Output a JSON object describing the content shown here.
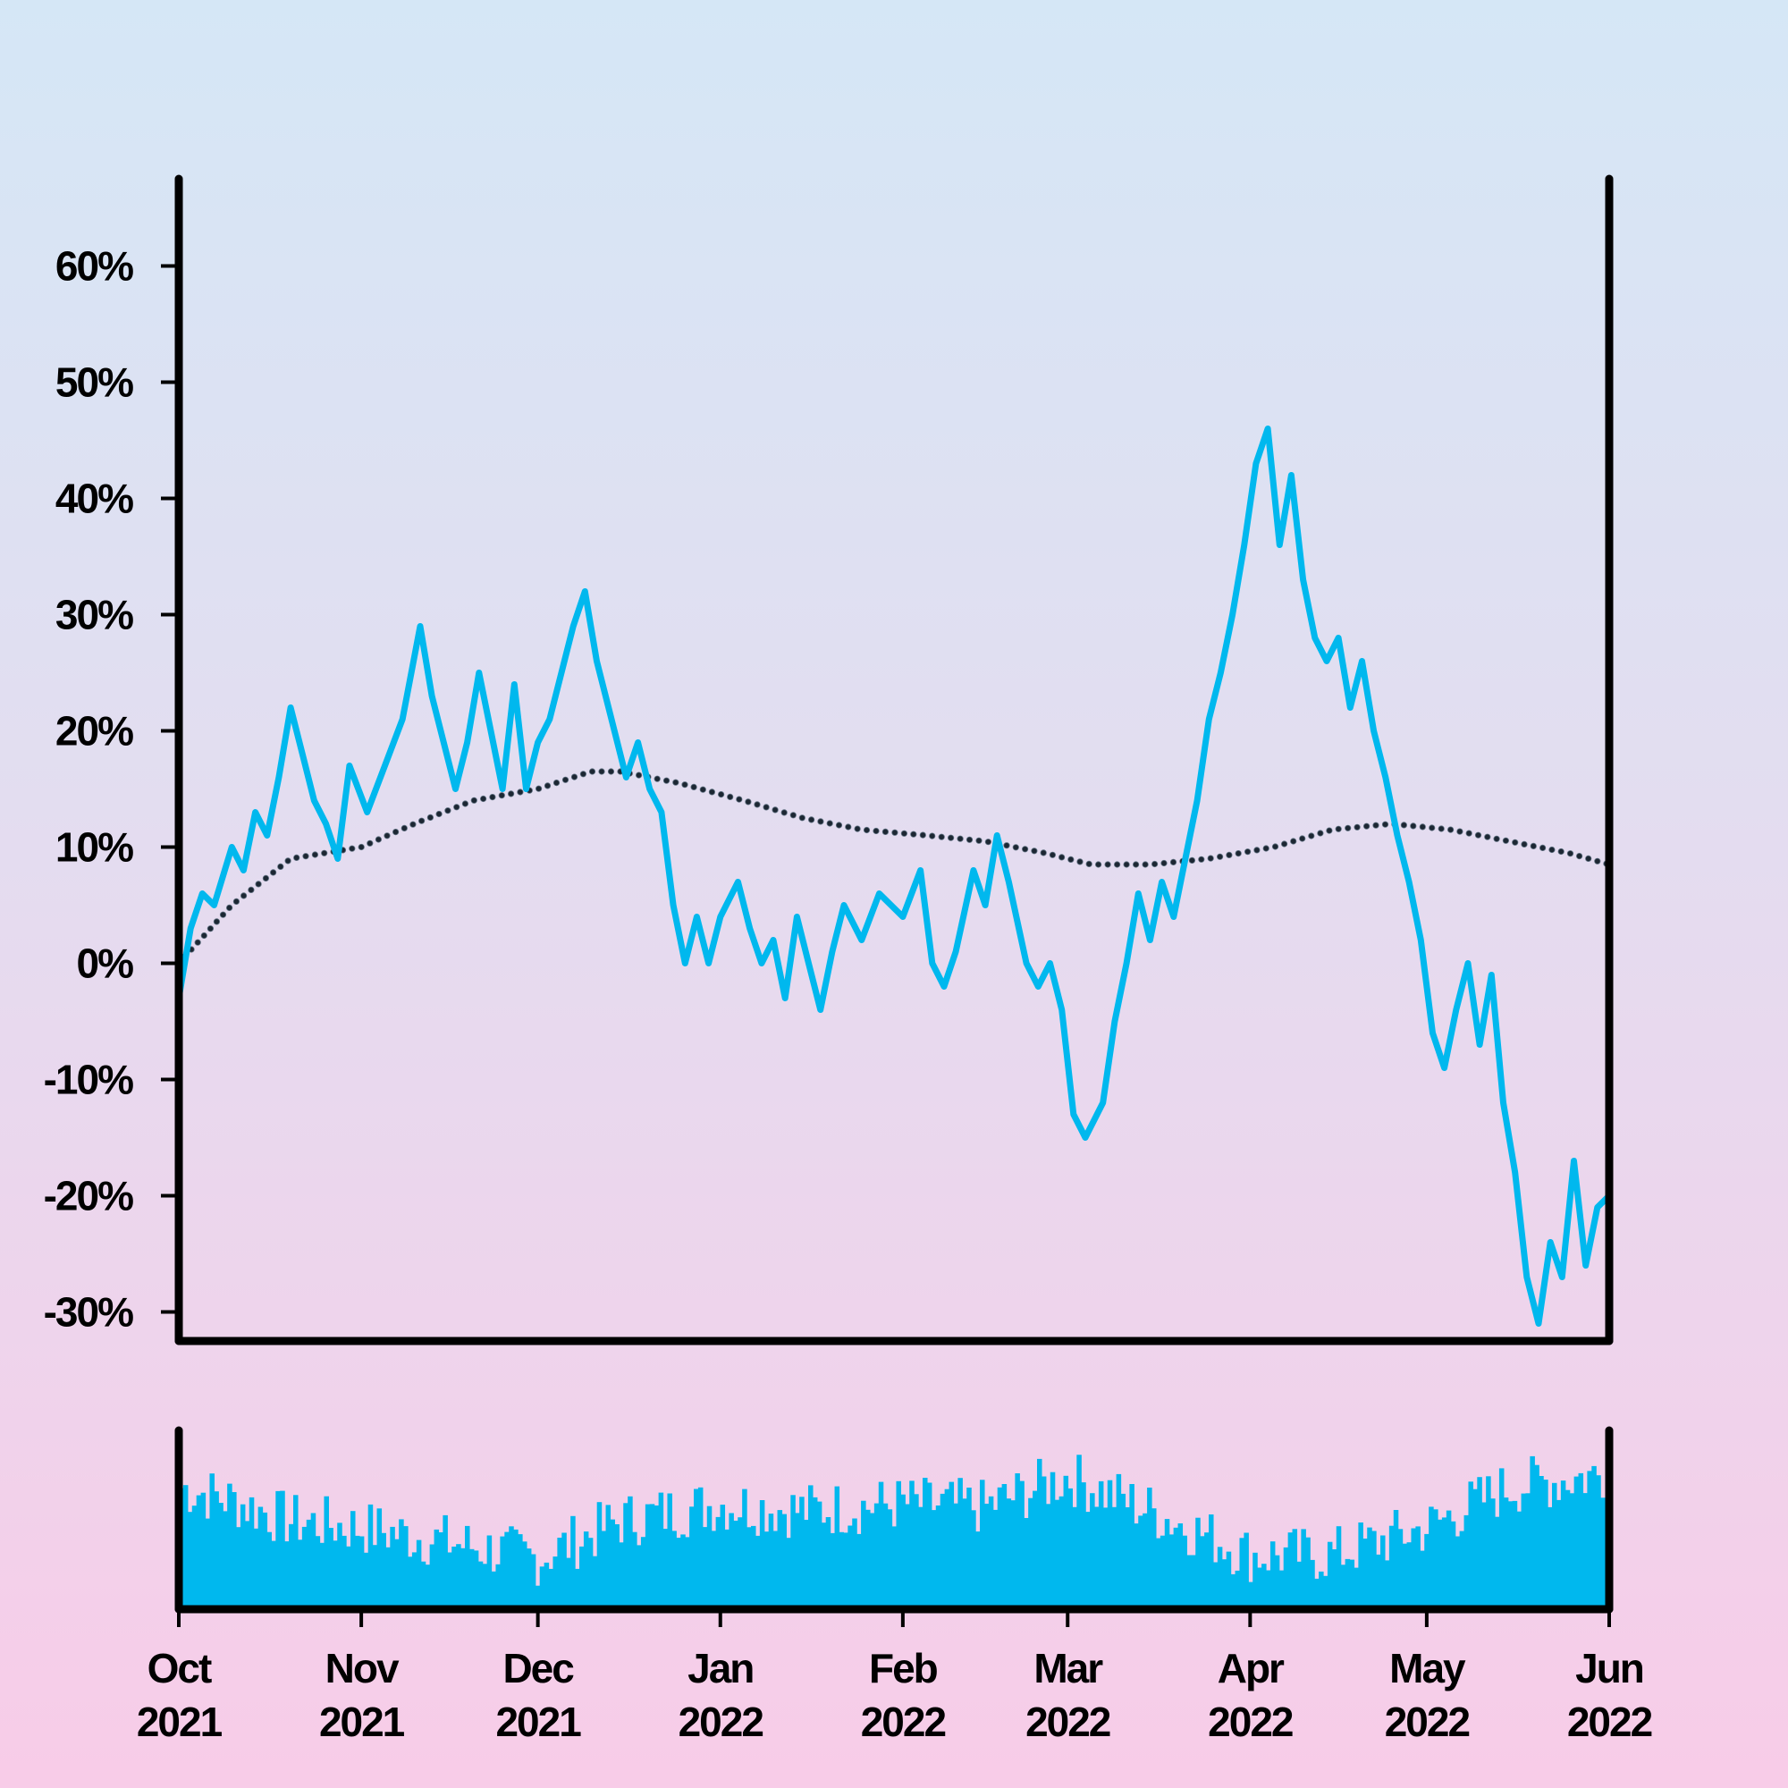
{
  "colors": {
    "price_line": "#00b8ee",
    "volume_bars": "#00b8ee",
    "trend_line": "#1c2733",
    "axis": "#000000"
  },
  "chart_data": {
    "type": "line",
    "title": "",
    "xlabel": "",
    "ylabel": "",
    "x_range": [
      "2021-10-01",
      "2022-06-01"
    ],
    "ylim": [
      -0.325,
      0.675
    ],
    "y_ticks": [
      "60%",
      "50%",
      "40%",
      "30%",
      "20%",
      "10%",
      "0%",
      "-10%",
      "-20%",
      "-30%"
    ],
    "y_tick_values": [
      0.6,
      0.5,
      0.4,
      0.3,
      0.2,
      0.1,
      0.0,
      -0.1,
      -0.2,
      -0.3
    ],
    "x_ticks": [
      {
        "month": "Oct",
        "year": "2021",
        "date": "2021-10-01"
      },
      {
        "month": "Nov",
        "year": "2021",
        "date": "2021-11-01"
      },
      {
        "month": "Dec",
        "year": "2021",
        "date": "2021-12-01"
      },
      {
        "month": "Jan",
        "year": "2022",
        "date": "2022-01-01"
      },
      {
        "month": "Feb",
        "year": "2022",
        "date": "2022-02-01"
      },
      {
        "month": "Mar",
        "year": "2022",
        "date": "2022-03-01"
      },
      {
        "month": "Apr",
        "year": "2022",
        "date": "2022-04-01"
      },
      {
        "month": "May",
        "year": "2022",
        "date": "2022-05-01"
      },
      {
        "month": "Jun",
        "year": "2022",
        "date": "2022-06-01"
      }
    ],
    "grid": false,
    "series": [
      {
        "style": "solid",
        "points": [
          [
            "2021-10-01",
            -0.03
          ],
          [
            "2021-10-03",
            0.03
          ],
          [
            "2021-10-05",
            0.06
          ],
          [
            "2021-10-07",
            0.05
          ],
          [
            "2021-10-10",
            0.1
          ],
          [
            "2021-10-12",
            0.08
          ],
          [
            "2021-10-14",
            0.13
          ],
          [
            "2021-10-16",
            0.11
          ],
          [
            "2021-10-18",
            0.16
          ],
          [
            "2021-10-20",
            0.22
          ],
          [
            "2021-10-22",
            0.18
          ],
          [
            "2021-10-24",
            0.14
          ],
          [
            "2021-10-26",
            0.12
          ],
          [
            "2021-10-28",
            0.09
          ],
          [
            "2021-10-30",
            0.17
          ],
          [
            "2021-11-02",
            0.13
          ],
          [
            "2021-11-05",
            0.17
          ],
          [
            "2021-11-08",
            0.21
          ],
          [
            "2021-11-11",
            0.29
          ],
          [
            "2021-11-13",
            0.23
          ],
          [
            "2021-11-15",
            0.19
          ],
          [
            "2021-11-17",
            0.15
          ],
          [
            "2021-11-19",
            0.19
          ],
          [
            "2021-11-21",
            0.25
          ],
          [
            "2021-11-23",
            0.2
          ],
          [
            "2021-11-25",
            0.15
          ],
          [
            "2021-11-27",
            0.24
          ],
          [
            "2021-11-29",
            0.15
          ],
          [
            "2021-12-01",
            0.19
          ],
          [
            "2021-12-03",
            0.21
          ],
          [
            "2021-12-05",
            0.25
          ],
          [
            "2021-12-07",
            0.29
          ],
          [
            "2021-12-09",
            0.32
          ],
          [
            "2021-12-11",
            0.26
          ],
          [
            "2021-12-13",
            0.22
          ],
          [
            "2021-12-16",
            0.16
          ],
          [
            "2021-12-18",
            0.19
          ],
          [
            "2021-12-20",
            0.15
          ],
          [
            "2021-12-22",
            0.13
          ],
          [
            "2021-12-24",
            0.05
          ],
          [
            "2021-12-26",
            0.0
          ],
          [
            "2021-12-28",
            0.04
          ],
          [
            "2021-12-30",
            0.0
          ],
          [
            "2022-01-01",
            0.04
          ],
          [
            "2022-01-04",
            0.07
          ],
          [
            "2022-01-06",
            0.03
          ],
          [
            "2022-01-08",
            0.0
          ],
          [
            "2022-01-10",
            0.02
          ],
          [
            "2022-01-12",
            -0.03
          ],
          [
            "2022-01-14",
            0.04
          ],
          [
            "2022-01-16",
            0.0
          ],
          [
            "2022-01-18",
            -0.04
          ],
          [
            "2022-01-20",
            0.01
          ],
          [
            "2022-01-22",
            0.05
          ],
          [
            "2022-01-25",
            0.02
          ],
          [
            "2022-01-28",
            0.06
          ],
          [
            "2022-02-01",
            0.04
          ],
          [
            "2022-02-04",
            0.08
          ],
          [
            "2022-02-06",
            0.0
          ],
          [
            "2022-02-08",
            -0.02
          ],
          [
            "2022-02-10",
            0.01
          ],
          [
            "2022-02-13",
            0.08
          ],
          [
            "2022-02-15",
            0.05
          ],
          [
            "2022-02-17",
            0.11
          ],
          [
            "2022-02-19",
            0.07
          ],
          [
            "2022-02-22",
            0.0
          ],
          [
            "2022-02-24",
            -0.02
          ],
          [
            "2022-02-26",
            0.0
          ],
          [
            "2022-02-28",
            -0.04
          ],
          [
            "2022-03-02",
            -0.13
          ],
          [
            "2022-03-04",
            -0.15
          ],
          [
            "2022-03-07",
            -0.12
          ],
          [
            "2022-03-09",
            -0.05
          ],
          [
            "2022-03-11",
            0.0
          ],
          [
            "2022-03-13",
            0.06
          ],
          [
            "2022-03-15",
            0.02
          ],
          [
            "2022-03-17",
            0.07
          ],
          [
            "2022-03-19",
            0.04
          ],
          [
            "2022-03-21",
            0.09
          ],
          [
            "2022-03-23",
            0.14
          ],
          [
            "2022-03-25",
            0.21
          ],
          [
            "2022-03-27",
            0.25
          ],
          [
            "2022-03-29",
            0.3
          ],
          [
            "2022-03-31",
            0.36
          ],
          [
            "2022-04-02",
            0.43
          ],
          [
            "2022-04-04",
            0.46
          ],
          [
            "2022-04-06",
            0.36
          ],
          [
            "2022-04-08",
            0.42
          ],
          [
            "2022-04-10",
            0.33
          ],
          [
            "2022-04-12",
            0.28
          ],
          [
            "2022-04-14",
            0.26
          ],
          [
            "2022-04-16",
            0.28
          ],
          [
            "2022-04-18",
            0.22
          ],
          [
            "2022-04-20",
            0.26
          ],
          [
            "2022-04-22",
            0.2
          ],
          [
            "2022-04-24",
            0.16
          ],
          [
            "2022-04-26",
            0.11
          ],
          [
            "2022-04-28",
            0.07
          ],
          [
            "2022-04-30",
            0.02
          ],
          [
            "2022-05-02",
            -0.06
          ],
          [
            "2022-05-04",
            -0.09
          ],
          [
            "2022-05-06",
            -0.04
          ],
          [
            "2022-05-08",
            0.0
          ],
          [
            "2022-05-10",
            -0.07
          ],
          [
            "2022-05-12",
            -0.01
          ],
          [
            "2022-05-14",
            -0.12
          ],
          [
            "2022-05-16",
            -0.18
          ],
          [
            "2022-05-18",
            -0.27
          ],
          [
            "2022-05-20",
            -0.31
          ],
          [
            "2022-05-22",
            -0.24
          ],
          [
            "2022-05-24",
            -0.27
          ],
          [
            "2022-05-26",
            -0.17
          ],
          [
            "2022-05-28",
            -0.26
          ],
          [
            "2022-05-30",
            -0.21
          ],
          [
            "2022-06-01",
            -0.2
          ]
        ]
      },
      {
        "style": "dotted",
        "points": [
          [
            "2021-10-01",
            0.0
          ],
          [
            "2021-10-10",
            0.05
          ],
          [
            "2021-10-20",
            0.09
          ],
          [
            "2021-11-01",
            0.1
          ],
          [
            "2021-11-10",
            0.12
          ],
          [
            "2021-11-20",
            0.14
          ],
          [
            "2021-12-01",
            0.15
          ],
          [
            "2021-12-10",
            0.165
          ],
          [
            "2021-12-15",
            0.165
          ],
          [
            "2021-12-25",
            0.155
          ],
          [
            "2022-01-05",
            0.14
          ],
          [
            "2022-01-15",
            0.125
          ],
          [
            "2022-01-25",
            0.115
          ],
          [
            "2022-02-05",
            0.11
          ],
          [
            "2022-02-15",
            0.105
          ],
          [
            "2022-02-25",
            0.095
          ],
          [
            "2022-03-05",
            0.085
          ],
          [
            "2022-03-15",
            0.085
          ],
          [
            "2022-03-25",
            0.09
          ],
          [
            "2022-04-05",
            0.1
          ],
          [
            "2022-04-15",
            0.115
          ],
          [
            "2022-04-25",
            0.12
          ],
          [
            "2022-05-05",
            0.115
          ],
          [
            "2022-05-15",
            0.105
          ],
          [
            "2022-05-25",
            0.095
          ],
          [
            "2022-06-01",
            0.085
          ]
        ]
      }
    ],
    "volume_series": {
      "type": "bar",
      "shape": "continuous daily bars; relative height 0-1",
      "profile": [
        [
          "2021-10-01",
          0.72
        ],
        [
          "2021-10-10",
          0.64
        ],
        [
          "2021-10-20",
          0.52
        ],
        [
          "2021-11-01",
          0.48
        ],
        [
          "2021-11-15",
          0.4
        ],
        [
          "2021-12-01",
          0.3
        ],
        [
          "2021-12-15",
          0.52
        ],
        [
          "2022-01-01",
          0.62
        ],
        [
          "2022-01-15",
          0.58
        ],
        [
          "2022-02-01",
          0.62
        ],
        [
          "2022-02-15",
          0.6
        ],
        [
          "2022-03-01",
          0.78
        ],
        [
          "2022-03-15",
          0.58
        ],
        [
          "2022-04-01",
          0.32
        ],
        [
          "2022-04-15",
          0.32
        ],
        [
          "2022-05-01",
          0.48
        ],
        [
          "2022-05-15",
          0.72
        ],
        [
          "2022-06-01",
          0.8
        ]
      ]
    }
  }
}
